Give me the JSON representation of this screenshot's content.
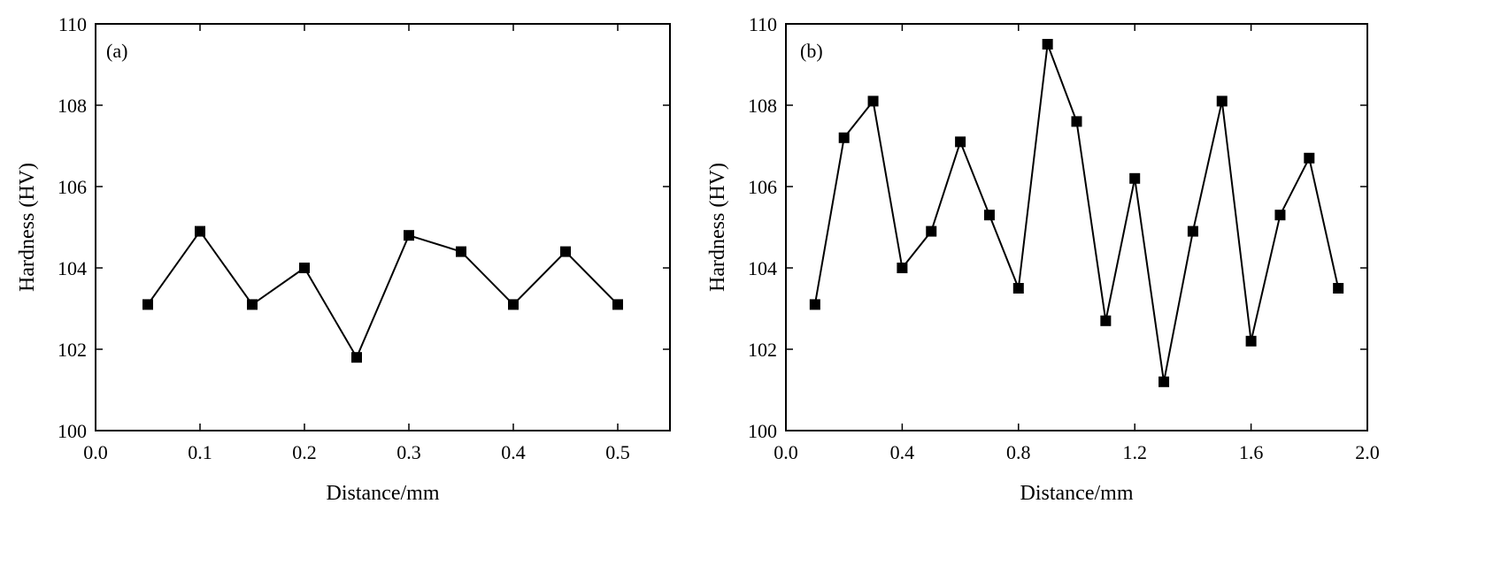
{
  "chart_data": [
    {
      "type": "line",
      "panel_label": "(a)",
      "xlabel": "Distance/mm",
      "ylabel": "Hardness (HV)",
      "xlim": [
        0.0,
        0.55
      ],
      "ylim": [
        100,
        110
      ],
      "xticks": [
        0.0,
        0.1,
        0.2,
        0.3,
        0.4,
        0.5
      ],
      "xtick_labels": [
        "0.0",
        "0.1",
        "0.2",
        "0.3",
        "0.4",
        "0.5"
      ],
      "yticks": [
        100,
        102,
        104,
        106,
        108,
        110
      ],
      "ytick_labels": [
        "100",
        "102",
        "104",
        "106",
        "108",
        "110"
      ],
      "marker": "square",
      "grid": false,
      "series": [
        {
          "x": [
            0.05,
            0.1,
            0.15,
            0.2,
            0.25,
            0.3,
            0.35,
            0.4,
            0.45,
            0.5
          ],
          "y": [
            103.1,
            104.9,
            103.1,
            104.0,
            101.8,
            104.8,
            104.4,
            103.1,
            104.4,
            103.1
          ]
        }
      ]
    },
    {
      "type": "line",
      "panel_label": "(b)",
      "xlabel": "Distance/mm",
      "ylabel": "Hardness (HV)",
      "xlim": [
        0.0,
        2.0
      ],
      "ylim": [
        100,
        110
      ],
      "xticks": [
        0.0,
        0.4,
        0.8,
        1.2,
        1.6,
        2.0
      ],
      "xtick_labels": [
        "0.0",
        "0.4",
        "0.8",
        "1.2",
        "1.6",
        "2.0"
      ],
      "yticks": [
        100,
        102,
        104,
        106,
        108,
        110
      ],
      "ytick_labels": [
        "100",
        "102",
        "104",
        "106",
        "108",
        "110"
      ],
      "marker": "square",
      "grid": false,
      "series": [
        {
          "x": [
            0.1,
            0.2,
            0.3,
            0.4,
            0.5,
            0.6,
            0.7,
            0.8,
            0.9,
            1.0,
            1.1,
            1.2,
            1.3,
            1.4,
            1.5,
            1.6,
            1.7,
            1.8,
            1.9
          ],
          "y": [
            103.1,
            107.2,
            108.1,
            104.0,
            104.9,
            107.1,
            105.3,
            103.5,
            109.5,
            107.6,
            102.7,
            106.2,
            101.2,
            104.9,
            108.1,
            102.2,
            105.3,
            106.7,
            103.5
          ]
        }
      ]
    }
  ]
}
